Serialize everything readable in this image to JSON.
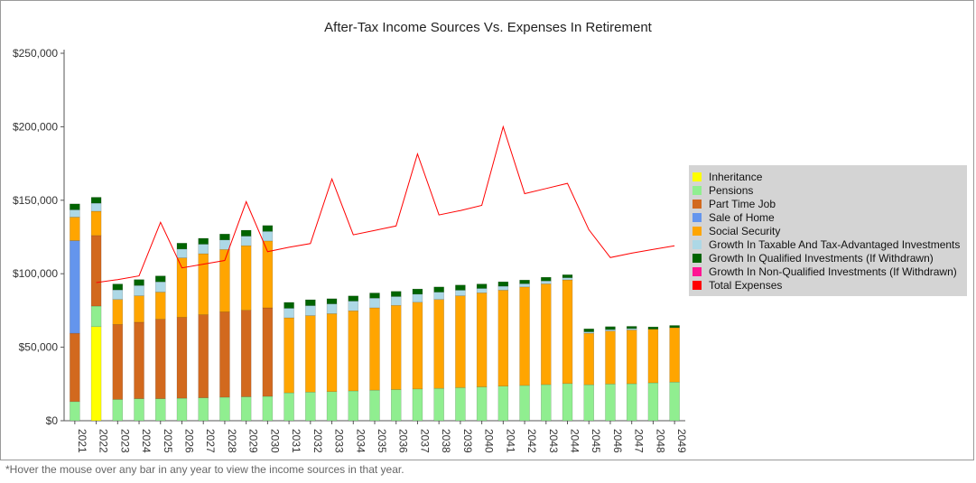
{
  "title": "After-Tax Income Sources Vs. Expenses In Retirement",
  "footnote": "*Hover the mouse over any bar in any year to view the income sources in that year.",
  "chart_data": {
    "type": "bar",
    "stacked": true,
    "categories": [
      "2021",
      "2022",
      "2023",
      "2024",
      "2025",
      "2026",
      "2027",
      "2028",
      "2029",
      "2030",
      "2031",
      "2032",
      "2033",
      "2034",
      "2035",
      "2036",
      "2037",
      "2038",
      "2039",
      "2040",
      "2041",
      "2042",
      "2043",
      "2044",
      "2045",
      "2046",
      "2047",
      "2048",
      "2049"
    ],
    "ylim": [
      0,
      250000
    ],
    "yticks": [
      0,
      50000,
      100000,
      150000,
      200000,
      250000
    ],
    "ytick_labels": [
      "$0",
      "$50,000",
      "$100,000",
      "$150,000",
      "$200,000",
      "$250,000"
    ],
    "legend_position": "right",
    "series": [
      {
        "name": "Inheritance",
        "color": "#ffff00",
        "values": [
          0,
          64000,
          0,
          0,
          0,
          0,
          0,
          0,
          0,
          0,
          0,
          0,
          0,
          0,
          0,
          0,
          0,
          0,
          0,
          0,
          0,
          0,
          0,
          0,
          0,
          0,
          0,
          0,
          0
        ]
      },
      {
        "name": "Pensions",
        "color": "#90ee90",
        "values": [
          13000,
          14000,
          14500,
          15000,
          15000,
          15300,
          15600,
          16000,
          16300,
          16600,
          19000,
          19500,
          19800,
          20300,
          20800,
          21200,
          21600,
          22000,
          22500,
          23000,
          23500,
          24000,
          24600,
          25300,
          24500,
          25000,
          25200,
          25800,
          26300
        ]
      },
      {
        "name": "Part Time Job",
        "color": "#d2691e",
        "values": [
          46500,
          48000,
          51000,
          52000,
          54000,
          55000,
          56500,
          58000,
          58800,
          60200,
          0,
          0,
          0,
          0,
          0,
          0,
          0,
          0,
          0,
          0,
          0,
          0,
          0,
          0,
          0,
          0,
          0,
          0,
          0
        ]
      },
      {
        "name": "Sale of Home",
        "color": "#6495ed",
        "values": [
          63000,
          0,
          0,
          0,
          0,
          0,
          0,
          0,
          0,
          0,
          0,
          0,
          0,
          0,
          0,
          0,
          0,
          0,
          0,
          0,
          0,
          0,
          0,
          0,
          0,
          0,
          0,
          0,
          0
        ]
      },
      {
        "name": "Social Security",
        "color": "#ffa500",
        "values": [
          16000,
          16500,
          17000,
          18000,
          18500,
          40500,
          41500,
          42500,
          44000,
          45500,
          51000,
          52000,
          53000,
          54500,
          56000,
          57300,
          59000,
          60500,
          62500,
          64000,
          65300,
          67000,
          68500,
          70500,
          35000,
          36000,
          36500,
          36500,
          37000
        ]
      },
      {
        "name": "Growth In Taxable And Tax-Advantaged Investments",
        "color": "#add8e6",
        "values": [
          5000,
          5500,
          6500,
          7000,
          7000,
          6000,
          6500,
          6500,
          6500,
          6500,
          6500,
          6800,
          6700,
          6600,
          6600,
          6000,
          5500,
          5000,
          3800,
          3000,
          2700,
          2200,
          2000,
          1500,
          1000,
          1000,
          1000,
          0,
          0
        ]
      },
      {
        "name": "Growth In Qualified Investments (If Withdrawn)",
        "color": "#006400",
        "values": [
          4000,
          4000,
          4000,
          4000,
          4000,
          4000,
          4000,
          4000,
          4000,
          4000,
          4000,
          4000,
          3500,
          3500,
          3500,
          3500,
          3500,
          3500,
          3500,
          3000,
          3000,
          2500,
          2500,
          2000,
          2000,
          2000,
          1500,
          1500,
          1500
        ]
      },
      {
        "name": "Growth In Non-Qualified Investments (If Withdrawn)",
        "color": "#ff1493",
        "values": [
          0,
          0,
          0,
          0,
          0,
          0,
          0,
          0,
          0,
          0,
          0,
          0,
          0,
          0,
          0,
          0,
          0,
          0,
          0,
          0,
          0,
          0,
          0,
          0,
          0,
          0,
          0,
          0,
          0
        ]
      }
    ],
    "line_series": {
      "name": "Total Expenses",
      "color": "#ff0000",
      "values": [
        null,
        94000,
        96000,
        98500,
        135000,
        104000,
        106500,
        109000,
        149000,
        115000,
        118000,
        120500,
        164500,
        126500,
        129500,
        132500,
        181500,
        140000,
        143000,
        146500,
        200000,
        154500,
        158000,
        161500,
        130000,
        111000,
        114000,
        116500,
        119000
      ]
    }
  }
}
